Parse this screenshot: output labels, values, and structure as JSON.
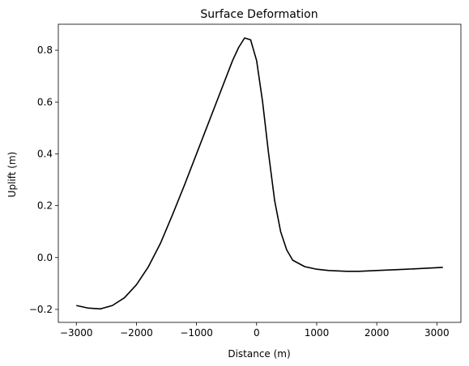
{
  "chart_data": {
    "type": "line",
    "title": "Surface Deformation",
    "xlabel": "Distance (m)",
    "ylabel": "Uplift (m)",
    "xlim": [
      -3300,
      3400
    ],
    "ylim": [
      -0.25,
      0.9
    ],
    "xticks": [
      -3000,
      -2000,
      -1000,
      0,
      1000,
      2000,
      3000
    ],
    "xtick_labels": [
      "−3000",
      "−2000",
      "−1000",
      "0",
      "1000",
      "2000",
      "3000"
    ],
    "yticks": [
      -0.2,
      0.0,
      0.2,
      0.4,
      0.6,
      0.8
    ],
    "ytick_labels": [
      "−0.2",
      "0.0",
      "0.2",
      "0.4",
      "0.6",
      "0.8"
    ],
    "grid": false,
    "line_color": "#000000",
    "series": [
      {
        "x": [
          -3000,
          -2800,
          -2600,
          -2400,
          -2200,
          -2000,
          -1800,
          -1600,
          -1400,
          -1200,
          -1000,
          -800,
          -600,
          -400,
          -300,
          -200,
          -100,
          0,
          100,
          200,
          300,
          400,
          500,
          600,
          800,
          1000,
          1200,
          1500,
          1700,
          2000,
          2500,
          3000,
          3100
        ],
        "y": [
          -0.185,
          -0.195,
          -0.198,
          -0.185,
          -0.155,
          -0.105,
          -0.035,
          0.055,
          0.165,
          0.28,
          0.4,
          0.52,
          0.64,
          0.76,
          0.81,
          0.847,
          0.84,
          0.76,
          0.6,
          0.4,
          0.22,
          0.1,
          0.03,
          -0.01,
          -0.035,
          -0.045,
          -0.05,
          -0.053,
          -0.053,
          -0.05,
          -0.045,
          -0.039,
          -0.038
        ]
      }
    ]
  }
}
